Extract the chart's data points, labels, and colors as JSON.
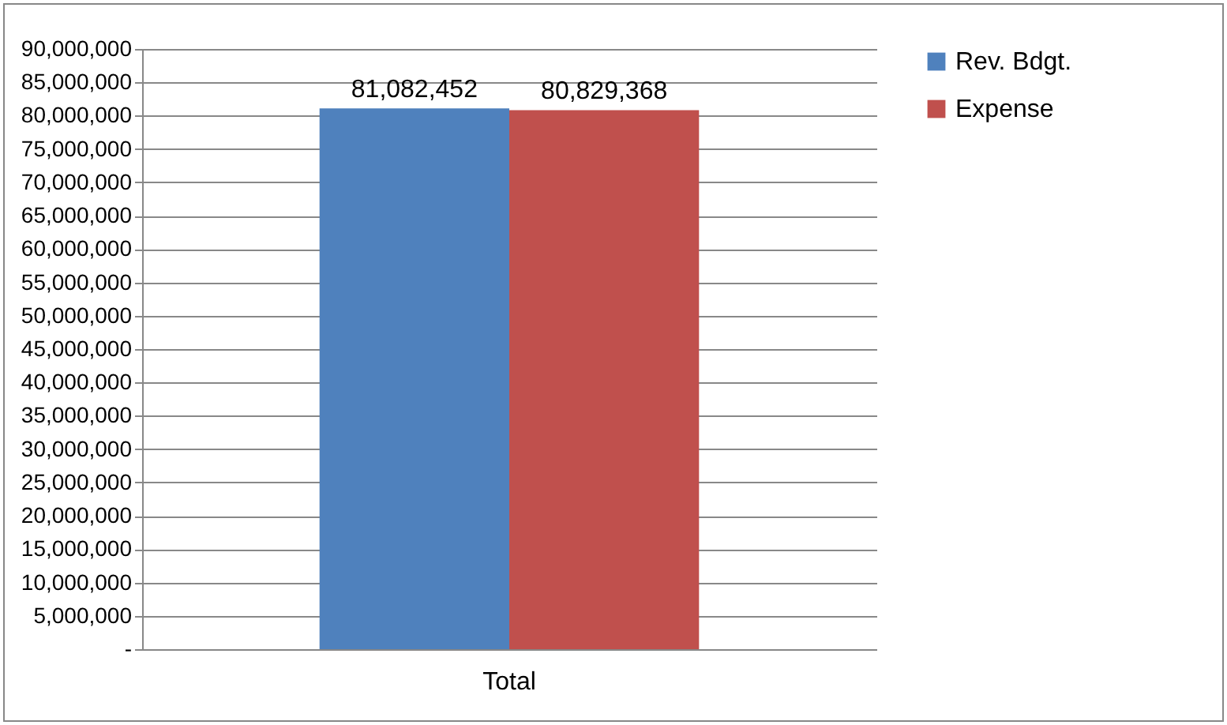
{
  "chart_data": {
    "type": "bar",
    "categories": [
      "Total"
    ],
    "series": [
      {
        "name": "Rev. Bdgt.",
        "color": "#4f81bd",
        "values": [
          81082452
        ],
        "value_labels": [
          "81,082,452"
        ]
      },
      {
        "name": "Expense",
        "color": "#c0504d",
        "values": [
          80829368
        ],
        "value_labels": [
          "80,829,368"
        ]
      }
    ],
    "ylim": [
      0,
      90000000
    ],
    "yticks": [
      {
        "value": 0,
        "label": "-"
      },
      {
        "value": 5000000,
        "label": "5,000,000"
      },
      {
        "value": 10000000,
        "label": "10,000,000"
      },
      {
        "value": 15000000,
        "label": "15,000,000"
      },
      {
        "value": 20000000,
        "label": "20,000,000"
      },
      {
        "value": 25000000,
        "label": "25,000,000"
      },
      {
        "value": 30000000,
        "label": "30,000,000"
      },
      {
        "value": 35000000,
        "label": "35,000,000"
      },
      {
        "value": 40000000,
        "label": "40,000,000"
      },
      {
        "value": 45000000,
        "label": "45,000,000"
      },
      {
        "value": 50000000,
        "label": "50,000,000"
      },
      {
        "value": 55000000,
        "label": "55,000,000"
      },
      {
        "value": 60000000,
        "label": "60,000,000"
      },
      {
        "value": 65000000,
        "label": "65,000,000"
      },
      {
        "value": 70000000,
        "label": "70,000,000"
      },
      {
        "value": 75000000,
        "label": "75,000,000"
      },
      {
        "value": 80000000,
        "label": "80,000,000"
      },
      {
        "value": 85000000,
        "label": "85,000,000"
      },
      {
        "value": 90000000,
        "label": "90,000,000"
      }
    ],
    "grid": "y",
    "legend": "right"
  }
}
